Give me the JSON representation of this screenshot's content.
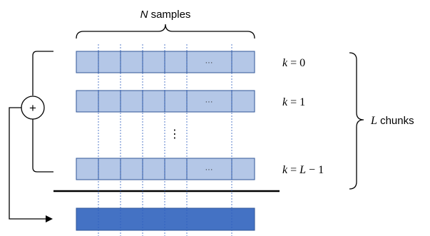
{
  "top_label": {
    "var": "N",
    "rest": " samples"
  },
  "right_label": {
    "var": "L",
    "rest": " chunks"
  },
  "sum_symbol": "+",
  "row_ellipsis": "···",
  "vertical_ellipsis": "⋮",
  "rows": [
    {
      "var": "k",
      "eq": " = 0"
    },
    {
      "var": "k",
      "eq": " = 1"
    },
    {
      "var": "k",
      "eq": " = ",
      "rhs_var": "L",
      "rhs_rest": " − 1"
    }
  ],
  "colors": {
    "chunk_fill": "#b4c7e7",
    "chunk_stroke": "#2f5597",
    "result_fill": "#4472c4",
    "guide_line": "#2f5fbf",
    "line": "#000000"
  }
}
